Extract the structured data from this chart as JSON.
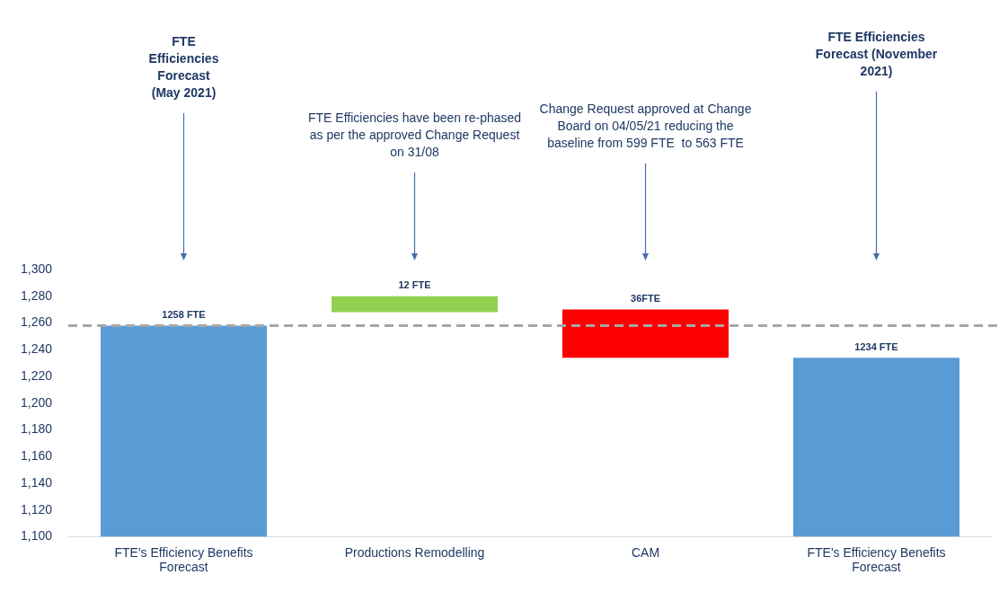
{
  "chart_data": {
    "type": "bar",
    "categories": [
      "FTE's Efficiency Benefits Forecast",
      "Productions Remodelling",
      "CAM",
      "FTE's Efficiency Benefits Forecast"
    ],
    "values": [
      1258,
      12,
      -36,
      1234
    ],
    "base": [
      null,
      1268,
      1270,
      null
    ],
    "colors": [
      "#5b9bd5",
      "#92d050",
      "#ff0000",
      "#5b9bd5"
    ],
    "value_labels": [
      "1258 FTE",
      "12 FTE",
      "36FTE",
      "1234 FTE"
    ],
    "ylim": [
      1100,
      1300
    ],
    "yticks": [
      {
        "value": 1100,
        "label": "1,100"
      },
      {
        "value": 1120,
        "label": "1,120"
      },
      {
        "value": 1140,
        "label": "1,140"
      },
      {
        "value": 1160,
        "label": "1,160"
      },
      {
        "value": 1180,
        "label": "1,180"
      },
      {
        "value": 1200,
        "label": "1,200"
      },
      {
        "value": 1220,
        "label": "1,220"
      },
      {
        "value": 1240,
        "label": "1,240"
      },
      {
        "value": 1260,
        "label": "1,260"
      },
      {
        "value": 1280,
        "label": "1,280"
      },
      {
        "value": 1300,
        "label": "1,300"
      }
    ],
    "ref_lines": [
      {
        "axis": "y",
        "value": 1258,
        "color": "#a6a6a6",
        "line_style": "dashed"
      }
    ],
    "annotations": [
      "FTE Efficiencies Forecast (May 2021)",
      "FTE Efficiencies have been re-phased as per the approved Change Request on 31/08",
      "Change Request approved at Change Board on 04/05/21 reducing the baseline from 599 FTE  to 563 FTE",
      "FTE Efficiencies Forecast (November 2021)"
    ],
    "grid": false,
    "legend": false
  }
}
